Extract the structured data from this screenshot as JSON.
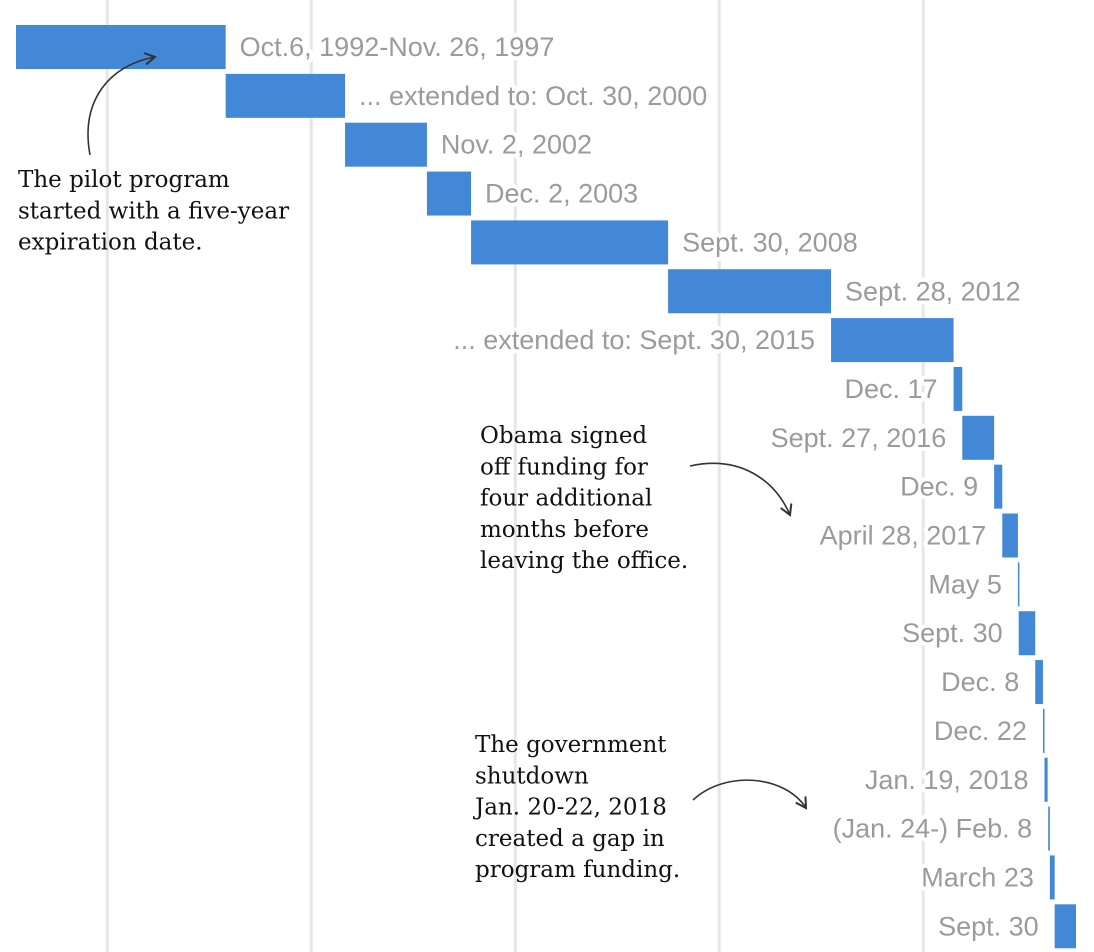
{
  "chart_data": {
    "type": "bar",
    "orientation": "horizontal-gantt",
    "x_axis": "date",
    "xlim": [
      "1992-10-06",
      "2018-09-30"
    ],
    "gridlines": [
      "1995-01-01",
      "2000-01-01",
      "2005-01-01",
      "2010-01-01",
      "2015-01-01"
    ],
    "grid": true,
    "bar_color": "#4388d6",
    "label_color": "#9b9b9b",
    "bars": [
      {
        "start": "1992-10-06",
        "end": "1997-11-26",
        "label": "Oct.6, 1992-Nov. 26, 1997"
      },
      {
        "start": "1997-11-26",
        "end": "2000-10-30",
        "label": "... extended to: Oct. 30, 2000"
      },
      {
        "start": "2000-10-30",
        "end": "2002-11-02",
        "label": "Nov. 2, 2002"
      },
      {
        "start": "2002-11-02",
        "end": "2003-12-02",
        "label": "Dec. 2, 2003"
      },
      {
        "start": "2003-12-02",
        "end": "2008-09-30",
        "label": "Sept. 30, 2008"
      },
      {
        "start": "2008-09-30",
        "end": "2012-09-28",
        "label": "Sept. 28, 2012"
      },
      {
        "start": "2012-09-28",
        "end": "2015-09-30",
        "label": "... extended to: Sept. 30, 2015"
      },
      {
        "start": "2015-09-30",
        "end": "2015-12-17",
        "label": "Dec. 17"
      },
      {
        "start": "2015-12-17",
        "end": "2016-09-27",
        "label": "Sept. 27, 2016"
      },
      {
        "start": "2016-09-27",
        "end": "2016-12-09",
        "label": "Dec. 9"
      },
      {
        "start": "2016-12-09",
        "end": "2017-04-28",
        "label": "April 28, 2017"
      },
      {
        "start": "2017-04-28",
        "end": "2017-05-05",
        "label": "May 5"
      },
      {
        "start": "2017-05-05",
        "end": "2017-09-30",
        "label": "Sept. 30"
      },
      {
        "start": "2017-09-30",
        "end": "2017-12-08",
        "label": "Dec. 8"
      },
      {
        "start": "2017-12-08",
        "end": "2017-12-22",
        "label": "Dec. 22"
      },
      {
        "start": "2017-12-22",
        "end": "2018-01-19",
        "label": "Jan. 19, 2018"
      },
      {
        "start": "2018-01-24",
        "end": "2018-02-08",
        "label": "(Jan. 24-) Feb. 8"
      },
      {
        "start": "2018-02-08",
        "end": "2018-03-23",
        "label": "March 23"
      },
      {
        "start": "2018-03-23",
        "end": "2018-09-30",
        "label": "Sept. 30"
      }
    ],
    "annotations": [
      {
        "lines": [
          "The pilot program",
          "started with a five-year",
          "expiration date."
        ],
        "points_to": "Oct.6, 1992-Nov. 26, 1997"
      },
      {
        "lines": [
          "Obama signed",
          "off funding for",
          "four additional",
          "months before",
          "leaving the office."
        ],
        "points_to": "April 28, 2017"
      },
      {
        "lines": [
          "The government",
          "shutdown",
          "Jan. 20-22, 2018",
          "created a gap in",
          "program funding."
        ],
        "points_to": "(Jan. 24-) Feb. 8"
      }
    ]
  }
}
